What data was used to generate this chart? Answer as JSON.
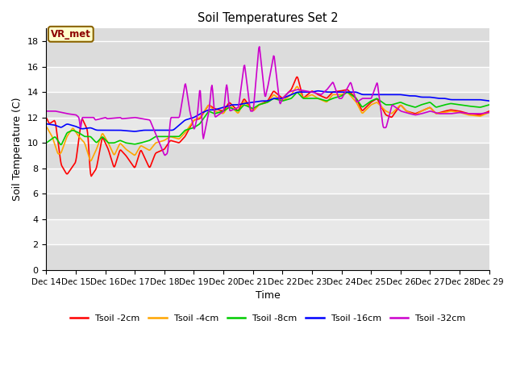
{
  "title": "Soil Temperatures Set 2",
  "xlabel": "Time",
  "ylabel": "Soil Temperature (C)",
  "ylim": [
    0,
    19
  ],
  "yticks": [
    0,
    2,
    4,
    6,
    8,
    10,
    12,
    14,
    16,
    18
  ],
  "plot_bg_upper": "#dcdcdc",
  "plot_bg_lower": "#e8e8e8",
  "fig_bg_color": "#ffffff",
  "grid_color": "#ffffff",
  "annotation_text": "VR_met",
  "annotation_color": "#8b0000",
  "annotation_bg": "#ffffcc",
  "annotation_edge": "#8b6400",
  "series_colors": {
    "Tsoil -2cm": "#ff0000",
    "Tsoil -4cm": "#ffa500",
    "Tsoil -8cm": "#00cc00",
    "Tsoil -16cm": "#0000ff",
    "Tsoil -32cm": "#cc00cc"
  },
  "x_labels": [
    "Dec 14",
    "Dec 15",
    "Dec 16",
    "Dec 17",
    "Dec 18",
    "Dec 19",
    "Dec 20",
    "Dec 21",
    "Dec 22",
    "Dec 23",
    "Dec 24",
    "Dec 25",
    "Dec 26",
    "Dec 27",
    "Dec 28",
    "Dec 29"
  ],
  "figsize": [
    6.4,
    4.8
  ],
  "dpi": 100
}
